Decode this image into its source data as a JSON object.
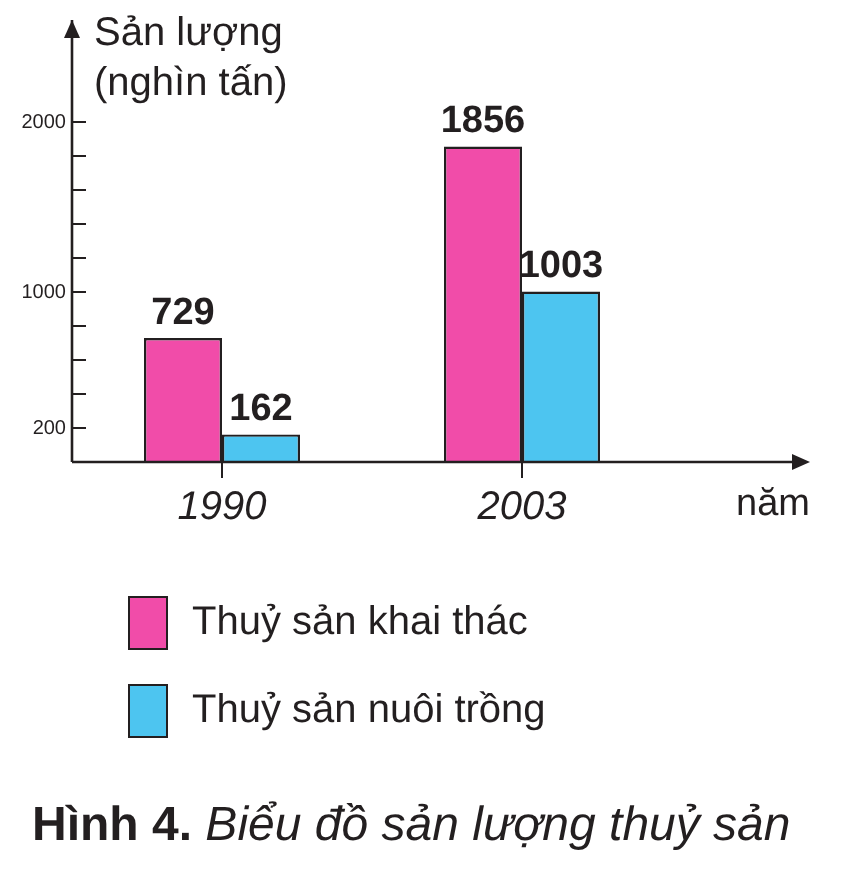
{
  "chart_data": {
    "type": "bar",
    "title": "Hình 4. Biểu đồ sản lượng thuỷ sản",
    "ylabel": "Sản lượng (nghìn tấn)",
    "xlabel": "năm",
    "categories": [
      "1990",
      "2003"
    ],
    "series": [
      {
        "name": "Thuỷ sản khai thác",
        "color": "#f14ca9",
        "values": [
          729,
          1856
        ]
      },
      {
        "name": "Thuỷ sản nuôi trồng",
        "color": "#4dc5f0",
        "values": [
          162,
          1003
        ]
      }
    ],
    "ylim": [
      0,
      2600
    ],
    "yticks": [
      200,
      {
        "value": 400,
        "label": null
      },
      {
        "value": 600,
        "label": null
      },
      {
        "value": 800,
        "label": null
      },
      1000,
      {
        "value": 1200,
        "label": null
      },
      {
        "value": 1400,
        "label": null
      },
      {
        "value": 1600,
        "label": null
      },
      {
        "value": 1800,
        "label": null
      },
      2000
    ],
    "data_labels": true,
    "legend": "bottom",
    "grid": false
  }
}
